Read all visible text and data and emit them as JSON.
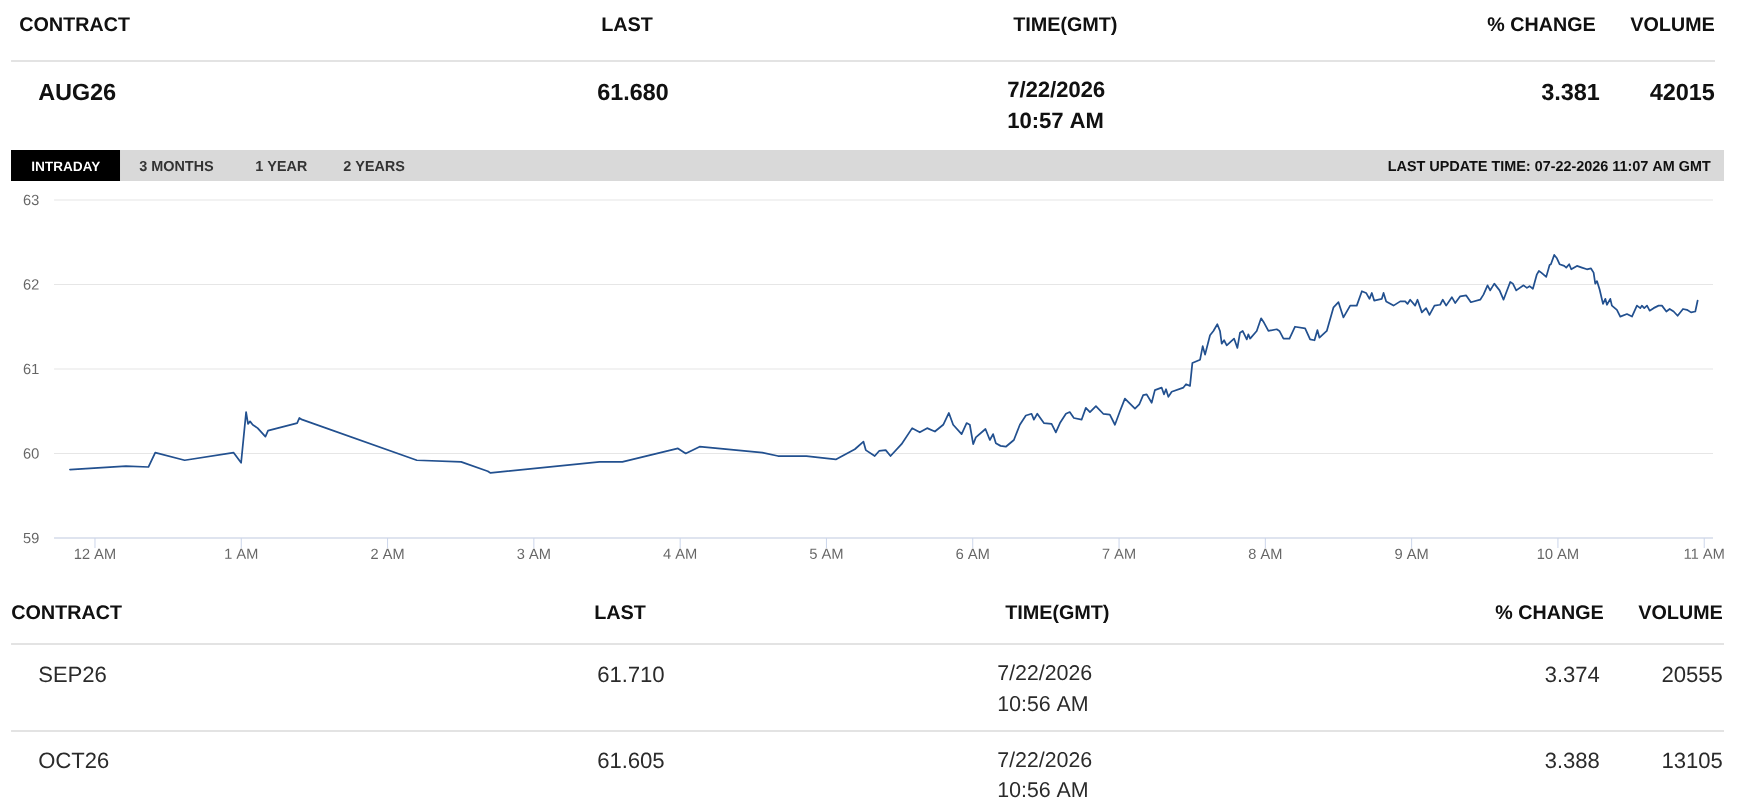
{
  "chart_data": {
    "type": "line",
    "color": "#22508f",
    "grid": "y",
    "xlim": [
      "2026-07-21T23:43:12",
      "2026-07-22T11:03:36"
    ],
    "ylim": [
      59,
      63
    ],
    "yticks": [
      59,
      60,
      61,
      62,
      63
    ],
    "xticks": [
      {
        "value": "2026-07-22T00:00",
        "label": "12 AM"
      },
      {
        "value": "2026-07-22T01:00",
        "label": "1 AM"
      },
      {
        "value": "2026-07-22T02:00",
        "label": "2 AM"
      },
      {
        "value": "2026-07-22T03:00",
        "label": "3 AM"
      },
      {
        "value": "2026-07-22T04:00",
        "label": "4 AM"
      },
      {
        "value": "2026-07-22T05:00",
        "label": "5 AM"
      },
      {
        "value": "2026-07-22T06:00",
        "label": "6 AM"
      },
      {
        "value": "2026-07-22T07:00",
        "label": "7 AM"
      },
      {
        "value": "2026-07-22T08:00",
        "label": "8 AM"
      },
      {
        "value": "2026-07-22T09:00",
        "label": "9 AM"
      },
      {
        "value": "2026-07-22T10:00",
        "label": "10 AM"
      },
      {
        "value": "2026-07-22T11:00",
        "label": "11 AM"
      }
    ],
    "x": [
      "2026-07-21T23:49:44",
      "2026-07-22T00:12:43",
      "2026-07-22T00:21:54",
      "2026-07-22T00:24:43",
      "2026-07-22T00:36:47",
      "2026-07-22T00:56:53",
      "2026-07-22T00:59:56",
      "2026-07-22T01:01:59",
      "2026-07-22T01:02:46",
      "2026-07-22T01:03:36",
      "2026-07-22T01:04:41",
      "2026-07-22T01:06:43",
      "2026-07-22T01:09:54",
      "2026-07-22T01:10:59",
      "2026-07-22T01:22:55",
      "2026-07-22T01:23:49",
      "2026-07-22T01:24:58",
      "2026-07-22T02:12:00",
      "2026-07-22T02:30:11",
      "2026-07-22T02:41:06",
      "2026-07-22T02:42:14",
      "2026-07-22T03:26:56",
      "2026-07-22T03:36:18",
      "2026-07-22T03:59:06",
      "2026-07-22T04:02:17",
      "2026-07-22T04:07:59",
      "2026-07-22T04:33:43",
      "2026-07-22T04:40:08",
      "2026-07-22T04:51:47",
      "2026-07-22T05:03:50",
      "2026-07-22T05:11:38",
      "2026-07-22T05:15:11",
      "2026-07-22T05:16:08",
      "2026-07-22T05:19:48",
      "2026-07-22T05:21:36",
      "2026-07-22T05:24:18",
      "2026-07-22T05:26:17",
      "2026-07-22T05:30:47",
      "2026-07-22T05:35:10",
      "2026-07-22T05:38:17",
      "2026-07-22T05:41:17",
      "2026-07-22T05:44:28",
      "2026-07-22T05:47:53",
      "2026-07-22T05:50:13",
      "2026-07-22T05:51:58",
      "2026-07-22T05:55:26",
      "2026-07-22T05:57:29",
      "2026-07-22T05:58:48",
      "2026-07-22T06:00:11",
      "2026-07-22T06:01:16",
      "2026-07-22T06:05:13",
      "2026-07-22T06:07:01",
      "2026-07-22T06:08:20",
      "2026-07-22T06:09:29",
      "2026-07-22T06:11:24",
      "2026-07-22T06:13:34",
      "2026-07-22T06:16:52",
      "2026-07-22T06:19:19",
      "2026-07-22T06:21:47",
      "2026-07-22T06:24:07",
      "2026-07-22T06:25:05",
      "2026-07-22T06:26:28",
      "2026-07-22T06:29:10",
      "2026-07-22T06:32:20",
      "2026-07-22T06:34:05",
      "2026-07-22T06:35:46",
      "2026-07-22T06:38:13",
      "2026-07-22T06:39:47",
      "2026-07-22T06:41:28",
      "2026-07-22T06:44:38",
      "2026-07-22T06:46:23",
      "2026-07-22T06:48:04",
      "2026-07-22T06:50:31",
      "2026-07-22T06:53:31",
      "2026-07-22T06:56:13",
      "2026-07-22T06:58:19",
      "2026-07-22T07:00:22",
      "2026-07-22T07:02:24",
      "2026-07-22T07:06:32",
      "2026-07-22T07:08:17",
      "2026-07-22T07:09:54",
      "2026-07-22T07:11:20",
      "2026-07-22T07:13:23",
      "2026-07-22T07:14:42",
      "2026-07-22T07:17:28",
      "2026-07-22T07:18:25",
      "2026-07-22T07:19:16",
      "2026-07-22T07:20:13",
      "2026-07-22T07:21:36",
      "2026-07-22T07:26:24",
      "2026-07-22T07:27:29",
      "2026-07-22T07:29:06",
      "2026-07-22T07:30:04",
      "2026-07-22T07:33:14",
      "2026-07-22T07:34:19",
      "2026-07-22T07:35:17",
      "2026-07-22T07:37:19",
      "2026-07-22T07:38:42",
      "2026-07-22T07:40:19",
      "2026-07-22T07:41:24",
      "2026-07-22T07:42:07",
      "2026-07-22T07:43:05",
      "2026-07-22T07:44:10",
      "2026-07-22T07:47:10",
      "2026-07-22T07:48:32",
      "2026-07-22T07:49:37",
      "2026-07-22T07:50:42",
      "2026-07-22T07:52:23",
      "2026-07-22T07:53:02",
      "2026-07-22T07:53:46",
      "2026-07-22T07:56:28",
      "2026-07-22T07:58:16",
      "2026-07-22T07:59:13",
      "2026-07-22T08:01:16",
      "2026-07-22T08:04:41",
      "2026-07-22T08:05:46",
      "2026-07-22T08:07:26",
      "2026-07-22T08:09:54",
      "2026-07-22T08:12:11",
      "2026-07-22T08:16:19",
      "2026-07-22T08:18:22",
      "2026-07-22T08:20:10",
      "2026-07-22T08:21:22",
      "2026-07-22T08:22:12",
      "2026-07-22T08:25:12",
      "2026-07-22T08:27:58",
      "2026-07-22T08:30:00",
      "2026-07-22T08:32:02",
      "2026-07-22T08:34:48",
      "2026-07-22T08:37:30",
      "2026-07-22T08:39:36",
      "2026-07-22T08:41:20",
      "2026-07-22T08:42:43",
      "2026-07-22T08:43:41",
      "2026-07-22T08:44:38",
      "2026-07-22T08:47:46",
      "2026-07-22T08:48:29",
      "2026-07-22T08:49:34",
      "2026-07-22T08:52:34",
      "2026-07-22T08:55:19",
      "2026-07-22T08:57:22",
      "2026-07-22T08:58:19",
      "2026-07-22T08:59:24",
      "2026-07-22T09:01:26",
      "2026-07-22T09:02:24",
      "2026-07-22T09:04:12",
      "2026-07-22T09:05:56",
      "2026-07-22T09:07:19",
      "2026-07-22T09:09:22",
      "2026-07-22T09:11:42",
      "2026-07-22T09:12:47",
      "2026-07-22T09:14:10",
      "2026-07-22T09:16:30",
      "2026-07-22T09:17:53",
      "2026-07-22T09:19:55",
      "2026-07-22T09:22:23",
      "2026-07-22T09:24:18",
      "2026-07-22T09:28:08",
      "2026-07-22T09:29:28",
      "2026-07-22T09:31:08",
      "2026-07-22T09:32:13",
      "2026-07-22T09:33:54",
      "2026-07-22T09:36:04",
      "2026-07-22T09:37:41",
      "2026-07-22T09:40:26",
      "2026-07-22T09:41:31",
      "2026-07-22T09:42:54",
      "2026-07-22T09:45:54",
      "2026-07-22T09:47:17",
      "2026-07-22T09:48:22",
      "2026-07-22T09:49:44",
      "2026-07-22T09:51:22",
      "2026-07-22T09:52:12",
      "2026-07-22T09:53:10",
      "2026-07-22T09:55:12",
      "2026-07-22T09:56:35",
      "2026-07-22T09:57:07",
      "2026-07-22T09:58:30",
      "2026-07-22T09:59:35",
      "2026-07-22T10:00:40",
      "2026-07-22T10:02:35",
      "2026-07-22T10:03:25",
      "2026-07-22T10:04:37",
      "2026-07-22T10:05:28",
      "2026-07-22T10:07:48",
      "2026-07-22T10:09:50",
      "2026-07-22T10:11:53",
      "2026-07-22T10:13:34",
      "2026-07-22T10:14:38",
      "2026-07-22T10:15:18",
      "2026-07-22T10:16:01",
      "2026-07-22T10:17:06",
      "2026-07-22T10:18:29",
      "2026-07-22T10:19:26",
      "2026-07-22T10:20:06",
      "2026-07-22T10:21:29",
      "2026-07-22T10:22:08",
      "2026-07-22T10:24:11",
      "2026-07-22T10:25:34",
      "2026-07-22T10:28:19",
      "2026-07-22T10:30:22",
      "2026-07-22T10:32:24",
      "2026-07-22T10:33:47",
      "2026-07-22T10:34:26",
      "2026-07-22T10:35:24",
      "2026-07-22T10:36:32",
      "2026-07-22T10:37:37",
      "2026-07-22T10:39:14",
      "2026-07-22T10:41:17",
      "2026-07-22T10:42:40",
      "2026-07-22T10:44:28",
      "2026-07-22T10:45:50",
      "2026-07-22T10:47:28",
      "2026-07-22T10:49:05",
      "2026-07-22T10:51:18",
      "2026-07-22T10:52:55",
      "2026-07-22T10:54:36",
      "2026-07-22T10:56:20",
      "2026-07-22T10:57:18"
    ],
    "values": [
      59.81,
      59.85,
      59.84,
      60.01,
      59.92,
      60.01,
      59.89,
      60.49,
      60.35,
      60.38,
      60.34,
      60.3,
      60.2,
      60.27,
      60.36,
      60.42,
      60.4,
      59.92,
      59.9,
      59.79,
      59.77,
      59.9,
      59.9,
      60.06,
      60.0,
      60.08,
      60.01,
      59.97,
      59.97,
      59.93,
      60.05,
      60.14,
      60.04,
      59.97,
      60.03,
      60.04,
      59.97,
      60.11,
      60.3,
      60.25,
      60.3,
      60.26,
      60.34,
      60.48,
      60.34,
      60.23,
      60.36,
      60.34,
      60.11,
      60.19,
      60.29,
      60.16,
      60.23,
      60.12,
      60.09,
      60.08,
      60.16,
      60.34,
      60.45,
      60.47,
      60.4,
      60.47,
      60.36,
      60.35,
      60.25,
      60.36,
      60.47,
      60.49,
      60.42,
      60.4,
      60.54,
      60.49,
      60.56,
      60.47,
      60.46,
      60.34,
      60.5,
      60.65,
      60.53,
      60.58,
      60.69,
      60.7,
      60.6,
      60.75,
      60.78,
      60.7,
      60.76,
      60.67,
      60.73,
      60.78,
      60.82,
      60.8,
      61.07,
      61.11,
      61.27,
      61.17,
      61.4,
      61.45,
      61.53,
      61.45,
      61.3,
      61.34,
      61.28,
      61.36,
      61.25,
      61.43,
      61.45,
      61.35,
      61.41,
      61.36,
      61.45,
      61.6,
      61.56,
      61.45,
      61.47,
      61.45,
      61.36,
      61.36,
      61.5,
      61.48,
      61.35,
      61.34,
      61.46,
      61.37,
      61.45,
      61.73,
      61.79,
      61.61,
      61.75,
      61.75,
      61.92,
      61.9,
      61.83,
      61.9,
      61.81,
      61.83,
      61.9,
      61.8,
      61.75,
      61.8,
      61.8,
      61.77,
      61.82,
      61.75,
      61.82,
      61.67,
      61.72,
      61.64,
      61.75,
      61.76,
      61.82,
      61.75,
      61.85,
      61.78,
      61.86,
      61.87,
      61.79,
      61.82,
      61.88,
      61.99,
      61.93,
      62.01,
      61.93,
      61.82,
      62.03,
      62.01,
      61.93,
      61.99,
      61.96,
      61.98,
      61.95,
      62.12,
      62.16,
      62.14,
      62.09,
      62.23,
      62.24,
      62.35,
      62.31,
      62.24,
      62.22,
      62.2,
      62.24,
      62.18,
      62.22,
      62.2,
      62.18,
      62.19,
      62.14,
      62.01,
      62.04,
      61.94,
      61.77,
      61.83,
      61.76,
      61.83,
      61.75,
      61.7,
      61.62,
      61.65,
      61.62,
      61.75,
      61.72,
      61.75,
      61.72,
      61.75,
      61.69,
      61.72,
      61.75,
      61.75,
      61.68,
      61.71,
      61.68,
      61.63,
      61.71,
      61.7,
      61.67,
      61.68,
      61.81
    ],
    "annotations": [
      "CONTRACT",
      "LAST",
      "TIME(GMT)",
      "% CHANGE",
      "VOLUME",
      "AUG26",
      "61.680",
      "7/22/2026",
      "10:57 AM",
      "3.381",
      "42015",
      "INTRADAY",
      "3 MONTHS",
      "1 YEAR",
      "2 YEARS",
      "LAST UPDATE TIME: 07-22-2026 11:07 AM GMT",
      "CONTRACT",
      "LAST",
      "TIME(GMT)",
      "% CHANGE",
      "VOLUME",
      "SEP26",
      "61.710",
      "7/22/2026",
      "10:56 AM",
      "3.374",
      "20555",
      "OCT26",
      "61.605",
      "7/22/2026",
      "10:56 AM",
      "3.388",
      "13105"
    ]
  }
}
